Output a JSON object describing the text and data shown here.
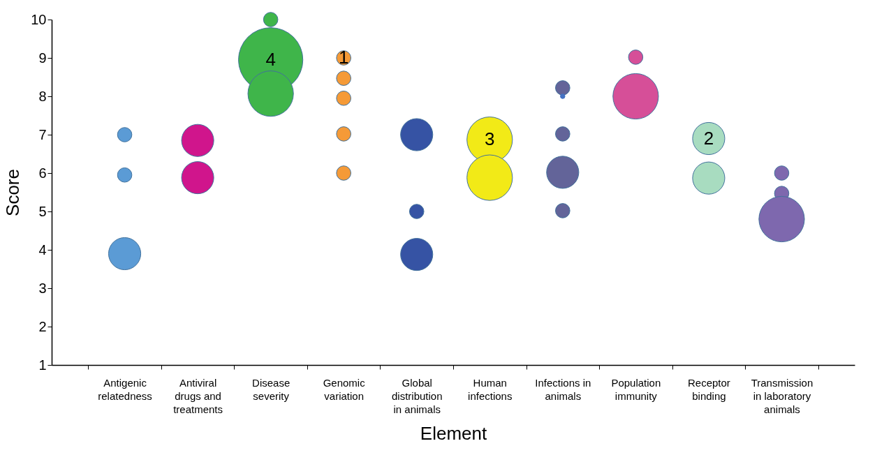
{
  "chart_data": {
    "type": "bubble",
    "xlabel": "Element",
    "ylabel": "Score",
    "categories": [
      "Antigenic relatedness",
      "Antiviral drugs and treatments",
      "Disease severity",
      "Genomic variation",
      "Global distribution in animals",
      "Human infections",
      "Infections in animals",
      "Population immunity",
      "Receptor binding",
      "Transmission in laboratory animals"
    ],
    "series": [
      {
        "color": "#5b9bd5",
        "x": [
          "Antigenic relatedness",
          "Antigenic relatedness",
          "Antigenic relatedness"
        ],
        "values": [
          7.0,
          5.95,
          3.9
        ],
        "sizes": [
          0.05,
          0.05,
          0.25
        ]
      },
      {
        "color": "#d0158c",
        "x": [
          "Antiviral drugs and treatments",
          "Antiviral drugs and treatments"
        ],
        "values": [
          6.85,
          5.88
        ],
        "sizes": [
          0.25,
          0.25
        ]
      },
      {
        "color": "#3fb54a",
        "x": [
          "Disease severity",
          "Disease severity",
          "Disease severity"
        ],
        "values": [
          10.0,
          8.95,
          8.07
        ],
        "sizes": [
          0.05,
          1,
          0.5
        ]
      },
      {
        "color": "#f59a37",
        "x": [
          "Genomic variation",
          "Genomic variation",
          "Genomic variation",
          "Genomic variation",
          "Genomic variation"
        ],
        "values": [
          9.0,
          8.47,
          7.95,
          7.02,
          6.0
        ],
        "sizes": [
          0.05,
          0.05,
          0.05,
          0.05,
          0.05
        ]
      },
      {
        "color": "#3653a4",
        "x": [
          "Global distribution in animals",
          "Global distribution in animals",
          "Global distribution in animals"
        ],
        "values": [
          7.0,
          5.0,
          3.88
        ],
        "sizes": [
          0.25,
          0.05,
          0.25
        ]
      },
      {
        "color": "#f2ea17",
        "x": [
          "Human infections",
          "Human infections"
        ],
        "values": [
          6.87,
          5.88
        ],
        "sizes": [
          0.5,
          0.5
        ]
      },
      {
        "color": "#636499",
        "colors": [
          "#636499",
          "#4472c4",
          "#636499",
          "#636499",
          "#636499"
        ],
        "x": [
          "Infections in animals",
          "Infections in animals",
          "Infections in animals",
          "Infections in animals",
          "Infections in animals"
        ],
        "values": [
          8.22,
          8.0,
          7.02,
          6.02,
          5.02
        ],
        "sizes": [
          0.05,
          0.005,
          0.05,
          0.25,
          0.05
        ]
      },
      {
        "color": "#d64f98",
        "x": [
          "Population immunity",
          "Population immunity"
        ],
        "values": [
          9.02,
          8.0
        ],
        "sizes": [
          0.05,
          0.5
        ]
      },
      {
        "color": "#a8dcc0",
        "x": [
          "Receptor binding",
          "Receptor binding"
        ],
        "values": [
          6.9,
          5.87
        ],
        "sizes": [
          0.25,
          0.25
        ]
      },
      {
        "color": "#7e68ae",
        "x": [
          "Transmission in laboratory animals",
          "Transmission in laboratory animals",
          "Transmission in laboratory animals"
        ],
        "values": [
          6.0,
          5.47,
          4.8
        ],
        "sizes": [
          0.05,
          0.05,
          0.5
        ]
      }
    ],
    "annotations": [
      {
        "text": "1",
        "x": "Genomic variation",
        "y": 9.0
      },
      {
        "text": "2",
        "x": "Receptor binding",
        "y": 6.9
      },
      {
        "text": "3",
        "x": "Human infections",
        "y": 6.87
      },
      {
        "text": "4",
        "x": "Disease severity",
        "y": 8.95
      }
    ],
    "ylim": [
      1,
      10
    ],
    "yticks": [
      1,
      2,
      3,
      4,
      5,
      6,
      7,
      8,
      9,
      10
    ],
    "grid": false,
    "legend": false,
    "marker": "circle"
  }
}
